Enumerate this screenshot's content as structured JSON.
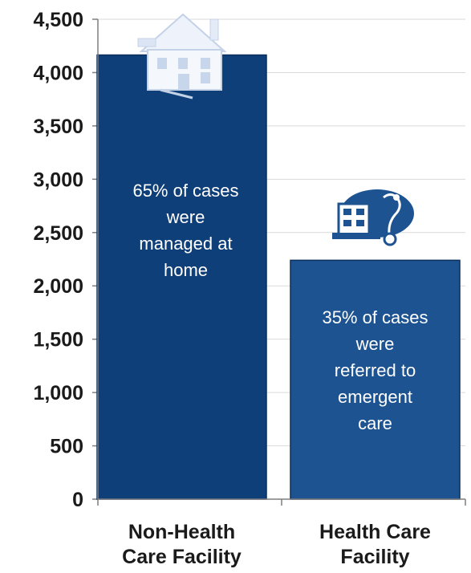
{
  "chart_data": {
    "type": "bar",
    "categories": [
      [
        "Non-Health",
        "Care Facility"
      ],
      [
        "Health Care",
        "Facility"
      ]
    ],
    "values": [
      4165,
      2240
    ],
    "ylim": [
      0,
      4500
    ],
    "yticks": [
      0,
      500,
      1000,
      1500,
      2000,
      2500,
      3000,
      3500,
      4000,
      4500
    ],
    "ytick_labels": [
      "0",
      "500",
      "1,000",
      "1,500",
      "2,000",
      "2,500",
      "3,000",
      "3,500",
      "4,000",
      "4,500"
    ],
    "grid": true,
    "colors": [
      "#0f3f78",
      "#1d5391"
    ],
    "annotations": [
      [
        "65% of cases",
        "were",
        "managed at",
        "home"
      ],
      [
        "35% of cases",
        "were",
        "referred to",
        "emergent",
        "care"
      ]
    ],
    "icons": [
      "house-icon",
      "hospital-stethoscope-icon"
    ]
  }
}
